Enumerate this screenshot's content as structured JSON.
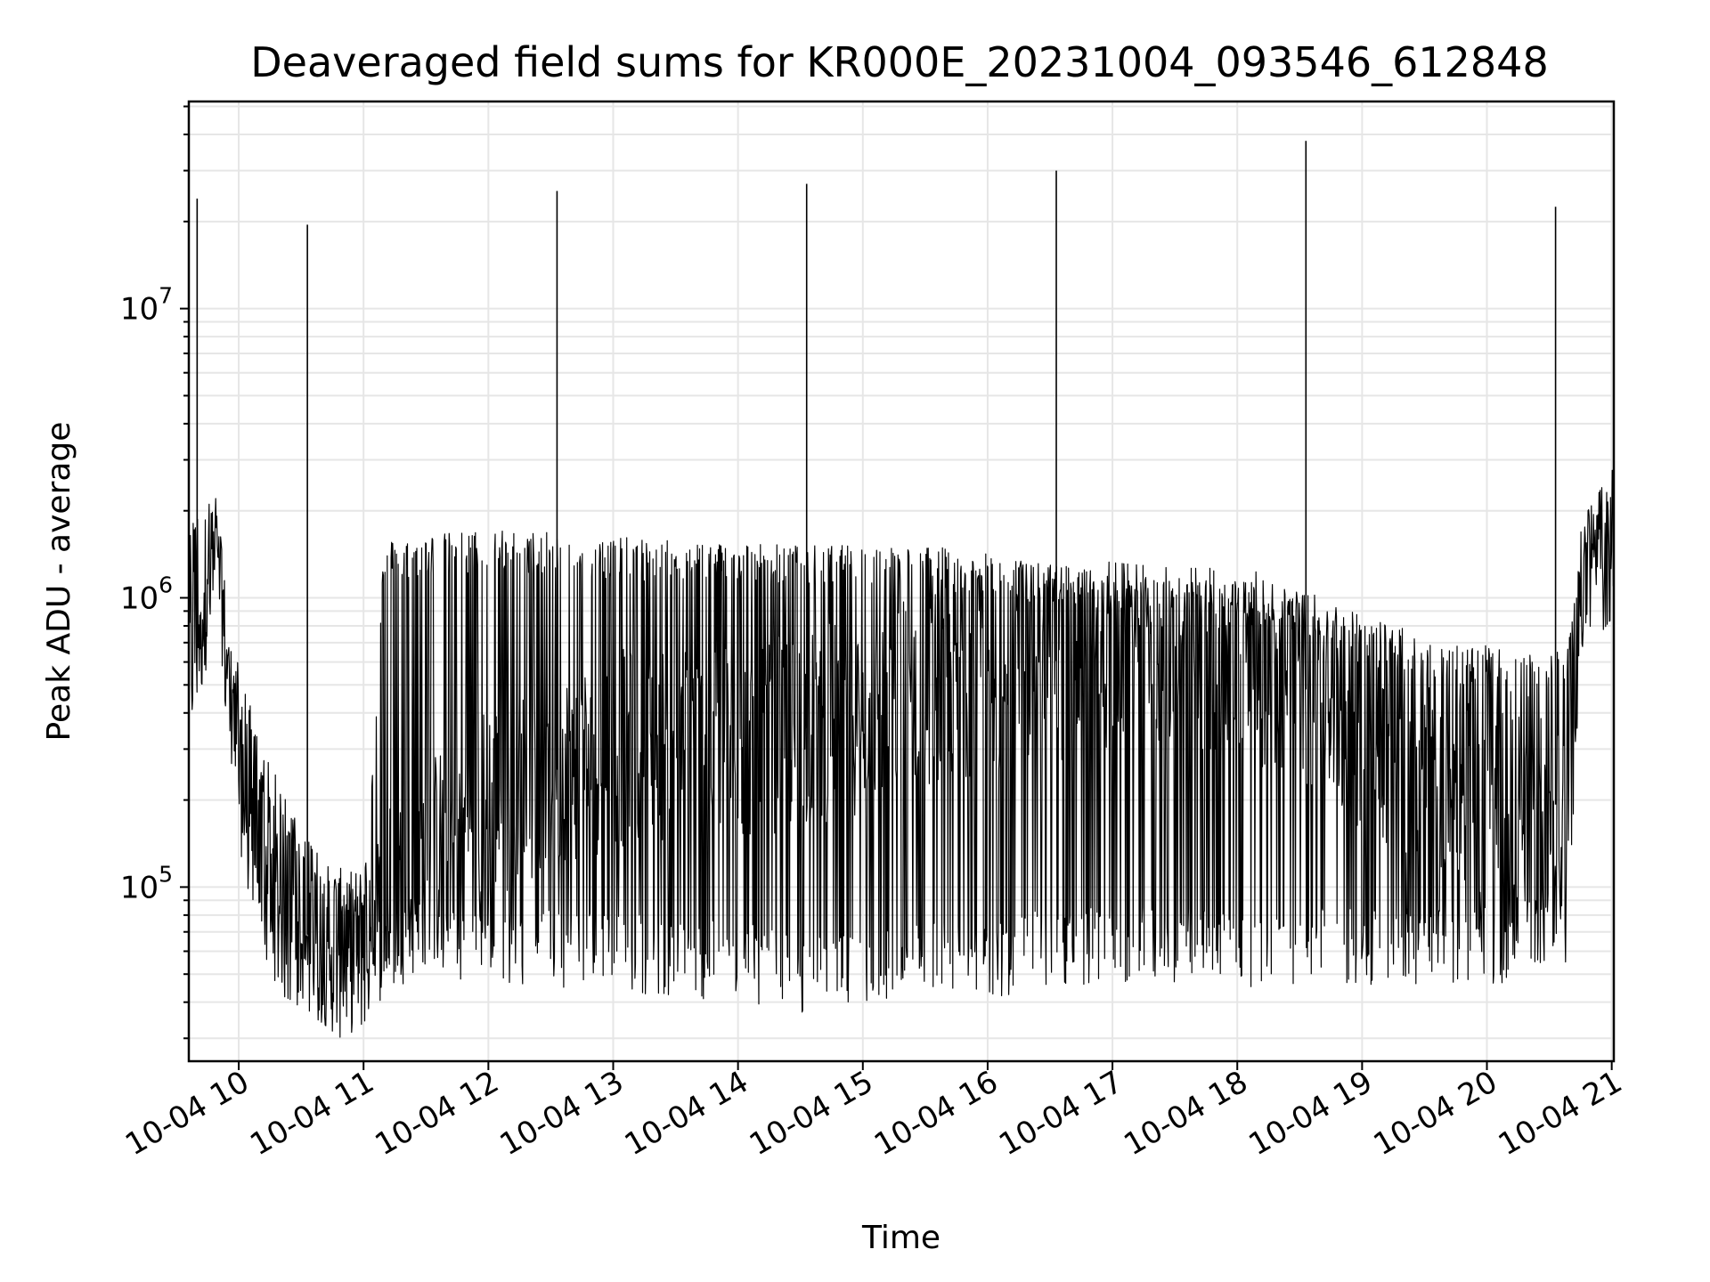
{
  "chart_data": {
    "type": "line",
    "title": "Deaveraged field sums for KR000E_20231004_093546_612848",
    "xlabel": "Time",
    "ylabel": "Peak ADU - average",
    "x_ticks": [
      "10-04 10",
      "10-04 11",
      "10-04 12",
      "10-04 13",
      "10-04 14",
      "10-04 15",
      "10-04 16",
      "10-04 17",
      "10-04 18",
      "10-04 19",
      "10-04 20",
      "10-04 21"
    ],
    "y_ticks": [
      {
        "base": "10",
        "exp": "5",
        "value": 100000
      },
      {
        "base": "10",
        "exp": "6",
        "value": 1000000
      },
      {
        "base": "10",
        "exp": "7",
        "value": 10000000
      }
    ],
    "xlim": [
      "2023-10-04 09:36",
      "2023-10-04 21:01"
    ],
    "ylim": [
      25000,
      52000000
    ],
    "y_scale": "log",
    "grid": true,
    "line_color": "#000000",
    "grid_color": "#e6e6e6",
    "series": [
      {
        "values_note_free": true,
        "x": [
          "2023-10-04 09:36",
          "2023-10-04 09:40",
          "2023-10-04 09:45",
          "2023-10-04 09:50",
          "2023-10-04 09:55",
          "2023-10-04 10:00",
          "2023-10-04 10:05",
          "2023-10-04 10:10",
          "2023-10-04 10:15",
          "2023-10-04 10:20",
          "2023-10-04 10:25",
          "2023-10-04 10:30",
          "2023-10-04 10:40",
          "2023-10-04 10:50",
          "2023-10-04 11:00",
          "2023-10-04 11:10",
          "2023-10-04 11:20",
          "2023-10-04 11:40",
          "2023-10-04 12:00",
          "2023-10-04 12:30",
          "2023-10-04 13:00",
          "2023-10-04 13:30",
          "2023-10-04 14:00",
          "2023-10-04 14:30",
          "2023-10-04 15:00",
          "2023-10-04 15:30",
          "2023-10-04 16:00",
          "2023-10-04 16:30",
          "2023-10-04 17:00",
          "2023-10-04 17:30",
          "2023-10-04 18:00",
          "2023-10-04 18:30",
          "2023-10-04 19:00",
          "2023-10-04 19:30",
          "2023-10-04 20:00",
          "2023-10-04 20:20",
          "2023-10-04 20:40",
          "2023-10-04 20:45",
          "2023-10-04 20:50",
          "2023-10-04 21:00"
        ],
        "high": [
          1500000,
          2200000,
          2400000,
          1800000,
          700000,
          500000,
          400000,
          300000,
          250000,
          220000,
          180000,
          170000,
          110000,
          100000,
          95000,
          1500000,
          1550000,
          1600000,
          1650000,
          1600000,
          1550000,
          1500000,
          1500000,
          1450000,
          1450000,
          1450000,
          1350000,
          1250000,
          1150000,
          1100000,
          1100000,
          1000000,
          850000,
          700000,
          650000,
          600000,
          700000,
          1600000,
          1800000,
          2400000
        ],
        "base": [
          600000,
          800000,
          1200000,
          1300000,
          500000,
          300000,
          200000,
          140000,
          100000,
          85000,
          75000,
          70000,
          65000,
          60000,
          65000,
          90000,
          100000,
          150000,
          200000,
          250000,
          300000,
          320000,
          320000,
          350000,
          400000,
          500000,
          550000,
          600000,
          650000,
          650000,
          600000,
          500000,
          350000,
          250000,
          200000,
          180000,
          200000,
          1300000,
          1400000,
          1600000
        ],
        "low": [
          450000,
          500000,
          700000,
          900000,
          400000,
          150000,
          100000,
          60000,
          55000,
          50000,
          48000,
          45000,
          40000,
          35000,
          40000,
          50000,
          55000,
          50000,
          50000,
          50000,
          50000,
          45000,
          45000,
          40000,
          40000,
          45000,
          45000,
          50000,
          50000,
          50000,
          50000,
          50000,
          50000,
          50000,
          50000,
          55000,
          60000,
          700000,
          800000,
          1000000
        ]
      }
    ],
    "spikes": [
      {
        "x": "2023-10-04 09:40",
        "y": 24000000
      },
      {
        "x": "2023-10-04 10:33",
        "y": 19500000
      },
      {
        "x": "2023-10-04 12:33",
        "y": 25500000
      },
      {
        "x": "2023-10-04 14:33",
        "y": 27000000
      },
      {
        "x": "2023-10-04 16:33",
        "y": 30000000
      },
      {
        "x": "2023-10-04 18:33",
        "y": 38000000
      },
      {
        "x": "2023-10-04 20:33",
        "y": 22500000
      }
    ]
  }
}
